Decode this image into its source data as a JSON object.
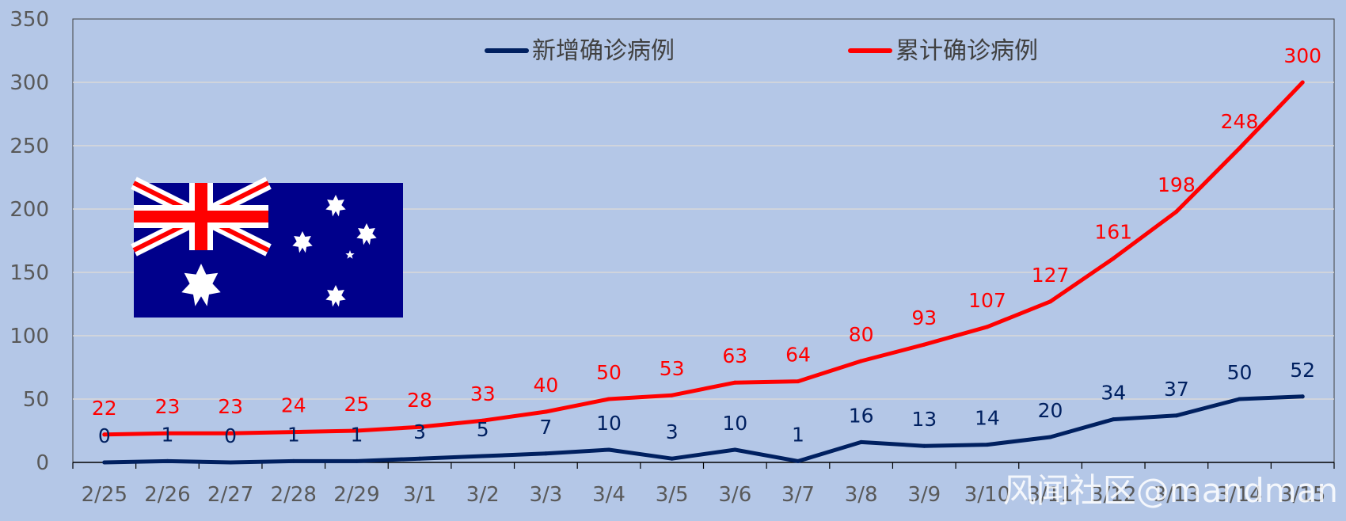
{
  "watermark": "风闻社区@mandman",
  "chart_data": {
    "type": "line",
    "categories": [
      "2/25",
      "2/26",
      "2/27",
      "2/28",
      "2/29",
      "3/1",
      "3/2",
      "3/3",
      "3/4",
      "3/5",
      "3/6",
      "3/7",
      "3/8",
      "3/9",
      "3/10",
      "3/11",
      "3/12",
      "3/13",
      "3/14",
      "3/15"
    ],
    "series": [
      {
        "name": "新增确诊病例",
        "color": "#002060",
        "values": [
          0,
          1,
          0,
          1,
          1,
          3,
          5,
          7,
          10,
          3,
          10,
          1,
          16,
          13,
          14,
          20,
          34,
          37,
          50,
          52
        ]
      },
      {
        "name": "累计确诊病例",
        "color": "#ff0000",
        "values": [
          22,
          23,
          23,
          24,
          25,
          28,
          33,
          40,
          50,
          53,
          63,
          64,
          80,
          93,
          107,
          127,
          161,
          198,
          248,
          300
        ]
      }
    ],
    "ylim": [
      0,
      350
    ],
    "yticks": [
      0,
      50,
      100,
      150,
      200,
      250,
      300,
      350
    ],
    "grid": true,
    "legend_position": "top-center",
    "background_color": "#b4c7e7",
    "gridline_color": "#d9d9d9"
  },
  "flag": {
    "icon": "australia-flag-icon",
    "field_color": "#00008b",
    "cross_color": "#ff0000"
  }
}
